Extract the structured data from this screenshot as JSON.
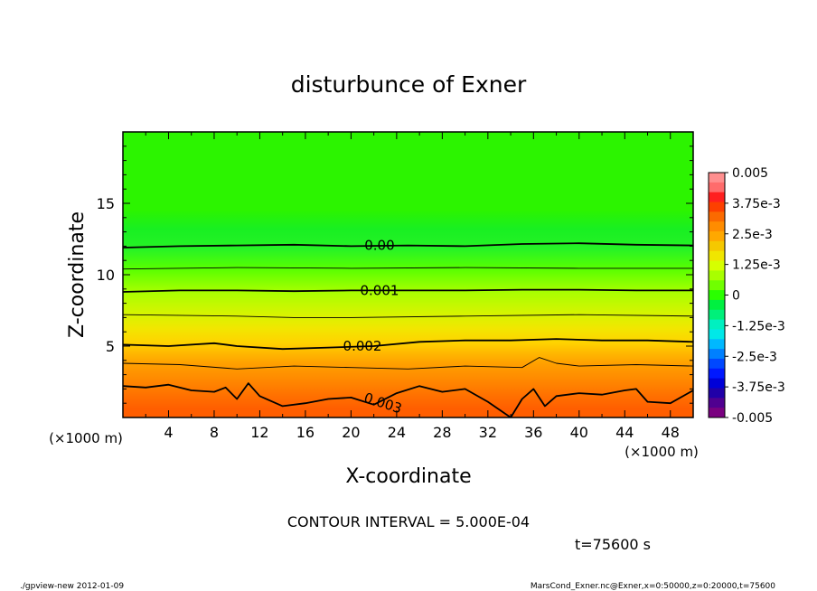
{
  "chart_data": {
    "type": "heatmap",
    "title": "disturbunce of Exner",
    "xlabel": "X-coordinate",
    "ylabel": "Z-coordinate",
    "x_unit_label": "(×1000 m)",
    "x_unit_label_left": "(×1000 m)",
    "xlim": [
      0,
      50
    ],
    "ylim": [
      0,
      20
    ],
    "x_ticks": [
      4,
      8,
      12,
      16,
      20,
      24,
      28,
      32,
      36,
      40,
      44,
      48
    ],
    "y_ticks": [
      5,
      10,
      15
    ],
    "contour_interval_text": "CONTOUR INTERVAL = 5.000E-04",
    "time_text": "t=75600 s",
    "contour_labels": [
      "0.00",
      "0.001",
      "0.002",
      "0.003"
    ],
    "contour_lines": [
      {
        "value": 0.0,
        "label": "0.00",
        "x": [
          0,
          5,
          10,
          15,
          20,
          25,
          30,
          35,
          40,
          45,
          50
        ],
        "z": [
          11.9,
          12.0,
          12.05,
          12.1,
          12.0,
          12.05,
          12.0,
          12.15,
          12.2,
          12.1,
          12.05
        ]
      },
      {
        "value": 0.0005,
        "x": [
          0,
          10,
          20,
          30,
          40,
          50
        ],
        "z": [
          10.4,
          10.5,
          10.45,
          10.5,
          10.45,
          10.45
        ]
      },
      {
        "value": 0.001,
        "label": "0.001",
        "x": [
          0,
          5,
          10,
          15,
          20,
          25,
          30,
          35,
          40,
          45,
          50
        ],
        "z": [
          8.8,
          8.9,
          8.9,
          8.85,
          8.9,
          8.9,
          8.9,
          8.95,
          8.95,
          8.9,
          8.9
        ]
      },
      {
        "value": 0.0015,
        "x": [
          0,
          10,
          15,
          20,
          30,
          40,
          50
        ],
        "z": [
          7.2,
          7.1,
          7.0,
          7.0,
          7.1,
          7.2,
          7.1
        ]
      },
      {
        "value": 0.002,
        "label": "0.002",
        "x": [
          0,
          4,
          8,
          10,
          14,
          18,
          22,
          26,
          30,
          34,
          38,
          42,
          46,
          50
        ],
        "z": [
          5.1,
          5.0,
          5.2,
          5.0,
          4.8,
          4.9,
          5.0,
          5.3,
          5.4,
          5.4,
          5.5,
          5.4,
          5.4,
          5.3
        ]
      },
      {
        "value": 0.0025,
        "x": [
          0,
          5,
          10,
          15,
          20,
          25,
          30,
          35,
          36.5,
          38,
          40,
          45,
          50
        ],
        "z": [
          3.8,
          3.7,
          3.4,
          3.6,
          3.5,
          3.4,
          3.6,
          3.5,
          4.2,
          3.8,
          3.6,
          3.7,
          3.6
        ]
      },
      {
        "value": 0.003,
        "label": "0.003",
        "x": [
          0,
          2,
          4,
          6,
          8,
          9,
          10,
          11,
          12,
          14,
          16,
          18,
          20,
          22,
          24,
          26,
          28,
          30,
          32,
          34,
          35,
          36,
          37,
          38,
          40,
          42,
          44,
          45,
          46,
          48,
          50
        ],
        "z": [
          2.2,
          2.1,
          2.3,
          1.9,
          1.8,
          2.1,
          1.3,
          2.4,
          1.5,
          0.8,
          1.0,
          1.3,
          1.4,
          0.9,
          1.7,
          2.2,
          1.8,
          2.0,
          1.1,
          0.0,
          1.3,
          2.0,
          0.8,
          1.5,
          1.7,
          1.6,
          1.9,
          2.0,
          1.1,
          1.0,
          1.9
        ]
      }
    ],
    "colorbar": {
      "tick_labels": [
        "0.005",
        "3.75e-3",
        "2.5e-3",
        "1.25e-3",
        "0",
        "-1.25e-3",
        "-2.5e-3",
        "-3.75e-3",
        "-0.005"
      ],
      "levels_top_to_bottom": [
        "#ff8f8f",
        "#ff6c6c",
        "#ff2020",
        "#fd4000",
        "#fb6a00",
        "#ff8c00",
        "#ffa800",
        "#f5c800",
        "#f0e600",
        "#d6ff00",
        "#a8ff00",
        "#70ff00",
        "#2aff00",
        "#00f040",
        "#00f07a",
        "#00f0c0",
        "#00e8e8",
        "#00b8ff",
        "#0080ff",
        "#0048ff",
        "#0018ff",
        "#0000d8",
        "#2000a8",
        "#500090",
        "#7a0080"
      ]
    },
    "field_color_bands": [
      {
        "z": 20.0,
        "color": "#2cf400"
      },
      {
        "z": 14.5,
        "color": "#2cf400"
      },
      {
        "z": 13.2,
        "color": "#18ef22"
      },
      {
        "z": 11.8,
        "color": "#27f326"
      },
      {
        "z": 10.4,
        "color": "#58ff00"
      },
      {
        "z": 8.8,
        "color": "#a8ff00"
      },
      {
        "z": 7.2,
        "color": "#d8f400"
      },
      {
        "z": 6.2,
        "color": "#f2e600"
      },
      {
        "z": 5.2,
        "color": "#ffd200"
      },
      {
        "z": 4.6,
        "color": "#ffbb00"
      },
      {
        "z": 3.8,
        "color": "#ffa000"
      },
      {
        "z": 2.6,
        "color": "#ff8800"
      },
      {
        "z": 1.5,
        "color": "#ff7000"
      },
      {
        "z": 0.6,
        "color": "#ff5e00"
      },
      {
        "z": 0.0,
        "color": "#ff5e00"
      }
    ]
  },
  "footer": {
    "left": "./gpview-new  2012-01-09",
    "right": "MarsCond_Exner.nc@Exner,x=0:50000,z=0:20000,t=75600"
  }
}
